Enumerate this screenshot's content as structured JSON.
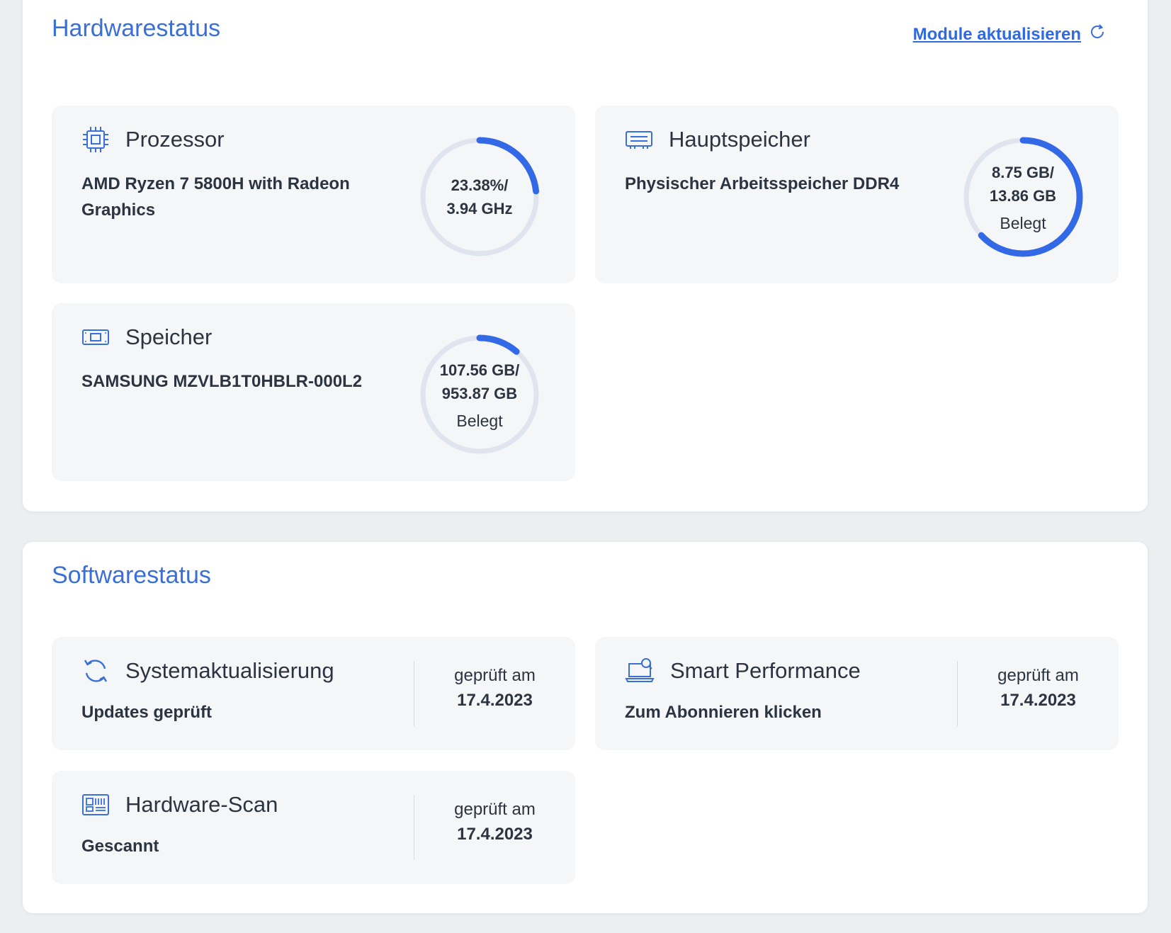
{
  "hardware": {
    "title": "Hardwarestatus",
    "refresh_label": "Module aktualisieren",
    "cards": {
      "cpu": {
        "icon": "cpu-chip-icon",
        "label": "Prozessor",
        "description": "AMD Ryzen 7 5800H with Radeon Graphics",
        "value_line1": "23.38%/",
        "value_line2": "3.94 GHz",
        "usage_fraction": 0.2338
      },
      "ram": {
        "icon": "memory-module-icon",
        "label": "Hauptspeicher",
        "description": "Physischer Arbeitsspeicher DDR4",
        "value_line1": "8.75 GB/",
        "value_line2": "13.86 GB",
        "sub": "Belegt",
        "usage_fraction": 0.631
      },
      "storage": {
        "icon": "drive-icon",
        "label": "Speicher",
        "description": "SAMSUNG MZVLB1T0HBLR-000L2",
        "value_line1": "107.56 GB/",
        "value_line2": "953.87 GB",
        "sub": "Belegt",
        "usage_fraction": 0.1128
      }
    }
  },
  "software": {
    "title": "Softwarestatus",
    "cards": {
      "update": {
        "icon": "sync-arrows-icon",
        "label": "Systemaktualisierung",
        "status": "Updates geprüft",
        "checked_label": "geprüft am",
        "checked_date": "17.4.2023"
      },
      "performance": {
        "icon": "laptop-search-icon",
        "label": "Smart Performance",
        "status": "Zum Abonnieren klicken",
        "checked_label": "geprüft am",
        "checked_date": "17.4.2023"
      },
      "scan": {
        "icon": "hardware-scan-icon",
        "label": "Hardware-Scan",
        "status": "Gescannt",
        "checked_label": "geprüft am",
        "checked_date": "17.4.2023"
      }
    }
  },
  "colors": {
    "accent": "#3a6fd8",
    "gauge_track": "#dfe4ee",
    "gauge_fill": "#3369e6",
    "card_bg": "#f4f6f8"
  }
}
